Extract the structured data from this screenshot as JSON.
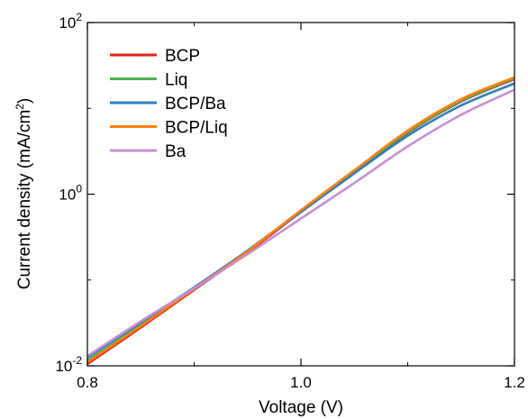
{
  "chart_data": {
    "type": "line",
    "xlabel": "Voltage (V)",
    "ylabel": "Current density (mA/cm",
    "ylabel_sup": "2",
    "ylabel_end": ")",
    "xlim": [
      0.8,
      1.2
    ],
    "ylim": [
      0.01,
      100
    ],
    "y_scale": "log",
    "grid": false,
    "legend_position": "top-left",
    "x_ticks": [
      {
        "value": 0.8,
        "label": "0.8"
      },
      {
        "value": 1.0,
        "label": "1.0"
      },
      {
        "value": 1.2,
        "label": "1.2"
      }
    ],
    "y_ticks": [
      {
        "value": 0.01,
        "base": "10",
        "exp": "-2"
      },
      {
        "value": 1,
        "base": "10",
        "exp": "0"
      },
      {
        "value": 100,
        "base": "10",
        "exp": "2"
      }
    ],
    "series": [
      {
        "name": "BCP",
        "color": "#e0201b",
        "x": [
          0.8,
          0.85,
          0.9,
          0.95,
          1.0,
          1.05,
          1.1,
          1.15,
          1.2
        ],
        "y": [
          0.0105,
          0.028,
          0.077,
          0.21,
          0.62,
          1.8,
          5.2,
          12.0,
          22.0
        ]
      },
      {
        "name": "Liq",
        "color": "#4caf50",
        "x": [
          0.8,
          0.85,
          0.9,
          0.95,
          1.0,
          1.05,
          1.1,
          1.15,
          1.2
        ],
        "y": [
          0.0115,
          0.03,
          0.08,
          0.22,
          0.64,
          1.85,
          5.3,
          12.2,
          22.5
        ]
      },
      {
        "name": "BCP/Ba",
        "color": "#2f7fbf",
        "x": [
          0.8,
          0.85,
          0.9,
          0.95,
          1.0,
          1.05,
          1.1,
          1.15,
          1.2
        ],
        "y": [
          0.0125,
          0.032,
          0.082,
          0.22,
          0.62,
          1.75,
          4.8,
          10.8,
          19.5
        ]
      },
      {
        "name": "BCP/Liq",
        "color": "#ff7f0e",
        "x": [
          0.8,
          0.85,
          0.9,
          0.95,
          1.0,
          1.05,
          1.1,
          1.15,
          1.2
        ],
        "y": [
          0.011,
          0.029,
          0.079,
          0.215,
          0.65,
          1.9,
          5.5,
          12.8,
          23.0
        ]
      },
      {
        "name": "Ba",
        "color": "#c58fd1",
        "x": [
          0.8,
          0.85,
          0.9,
          0.95,
          1.0,
          1.05,
          1.1,
          1.15,
          1.2
        ],
        "y": [
          0.013,
          0.033,
          0.08,
          0.2,
          0.52,
          1.35,
          3.6,
          8.4,
          16.5
        ]
      }
    ]
  }
}
